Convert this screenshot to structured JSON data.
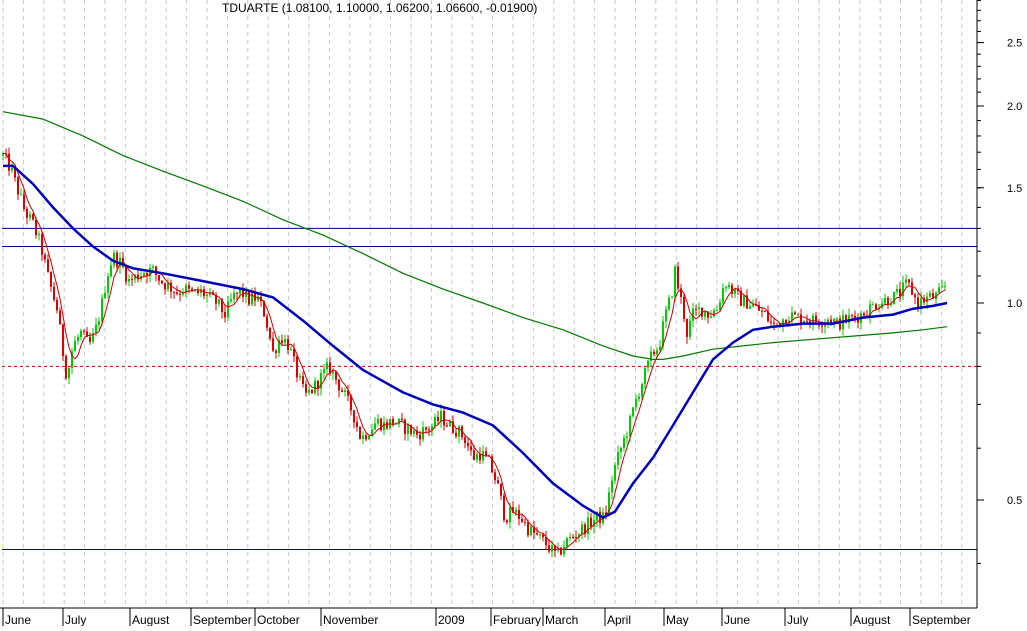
{
  "chart_data": {
    "type": "candlestick",
    "title": "TDUARTE (1.08100, 1.10000, 1.06200, 1.06600, -0.01900)",
    "y_scale": "log",
    "ylim": [
      0.38,
      3.0
    ],
    "y_ticks": [
      {
        "value": 2.5,
        "label": "2.5"
      },
      {
        "value": 2.0,
        "label": "2.0"
      },
      {
        "value": 1.5,
        "label": "1.5"
      },
      {
        "value": 1.0,
        "label": "1.0"
      },
      {
        "value": 0.5,
        "label": "0.5"
      }
    ],
    "x_labels": [
      "June",
      "July",
      "August",
      "September",
      "October",
      "November",
      "2009",
      "February",
      "March",
      "April",
      "May",
      "June",
      "July",
      "August",
      "September"
    ],
    "grid": "vertical dashed",
    "colors": {
      "up": "#00cc00",
      "down": "#dd0000",
      "ma_short": "#cc0000",
      "ma_medium": "#0000bb",
      "ma_long": "#007700",
      "hline": "#000099",
      "dashed_hline": "#cc0000"
    },
    "horizontal_lines": [
      {
        "value": 1.3,
        "style": "solid"
      },
      {
        "value": 1.22,
        "style": "solid"
      },
      {
        "value": 0.42,
        "style": "solid"
      },
      {
        "value": 0.8,
        "style": "dashed"
      }
    ],
    "price_path": [
      [
        0,
        1.68
      ],
      [
        8,
        1.6
      ],
      [
        14,
        1.5
      ],
      [
        22,
        1.38
      ],
      [
        30,
        1.32
      ],
      [
        38,
        1.22
      ],
      [
        46,
        1.08
      ],
      [
        54,
        0.98
      ],
      [
        60,
        0.84
      ],
      [
        64,
        0.77
      ],
      [
        70,
        0.86
      ],
      [
        78,
        0.9
      ],
      [
        86,
        0.86
      ],
      [
        92,
        0.9
      ],
      [
        98,
        0.98
      ],
      [
        104,
        1.1
      ],
      [
        110,
        1.18
      ],
      [
        118,
        1.15
      ],
      [
        126,
        1.08
      ],
      [
        134,
        1.1
      ],
      [
        142,
        1.12
      ],
      [
        150,
        1.12
      ],
      [
        158,
        1.08
      ],
      [
        166,
        1.06
      ],
      [
        174,
        1.04
      ],
      [
        182,
        1.05
      ],
      [
        190,
        1.03
      ],
      [
        198,
        1.04
      ],
      [
        206,
        1.02
      ],
      [
        214,
        1.0
      ],
      [
        222,
        0.96
      ],
      [
        230,
        1.02
      ],
      [
        238,
        1.04
      ],
      [
        246,
        1.01
      ],
      [
        254,
        1.02
      ],
      [
        262,
        0.96
      ],
      [
        270,
        0.84
      ],
      [
        278,
        0.89
      ],
      [
        286,
        0.86
      ],
      [
        294,
        0.78
      ],
      [
        302,
        0.72
      ],
      [
        310,
        0.74
      ],
      [
        318,
        0.77
      ],
      [
        326,
        0.8
      ],
      [
        334,
        0.76
      ],
      [
        342,
        0.72
      ],
      [
        350,
        0.68
      ],
      [
        358,
        0.62
      ],
      [
        366,
        0.64
      ],
      [
        374,
        0.66
      ],
      [
        382,
        0.65
      ],
      [
        390,
        0.66
      ],
      [
        398,
        0.65
      ],
      [
        406,
        0.64
      ],
      [
        414,
        0.63
      ],
      [
        422,
        0.64
      ],
      [
        430,
        0.65
      ],
      [
        438,
        0.67
      ],
      [
        446,
        0.65
      ],
      [
        454,
        0.64
      ],
      [
        462,
        0.62
      ],
      [
        470,
        0.58
      ],
      [
        478,
        0.59
      ],
      [
        486,
        0.57
      ],
      [
        494,
        0.53
      ],
      [
        502,
        0.47
      ],
      [
        510,
        0.48
      ],
      [
        518,
        0.47
      ],
      [
        526,
        0.45
      ],
      [
        534,
        0.44
      ],
      [
        542,
        0.43
      ],
      [
        548,
        0.42
      ],
      [
        554,
        0.41
      ],
      [
        562,
        0.43
      ],
      [
        570,
        0.44
      ],
      [
        578,
        0.45
      ],
      [
        586,
        0.46
      ],
      [
        594,
        0.47
      ],
      [
        602,
        0.47
      ],
      [
        610,
        0.55
      ],
      [
        618,
        0.6
      ],
      [
        626,
        0.65
      ],
      [
        634,
        0.72
      ],
      [
        642,
        0.78
      ],
      [
        650,
        0.84
      ],
      [
        656,
        0.86
      ],
      [
        660,
        0.92
      ],
      [
        664,
        0.98
      ],
      [
        668,
        1.02
      ],
      [
        672,
        1.12
      ],
      [
        676,
        1.04
      ],
      [
        680,
        0.98
      ],
      [
        684,
        0.9
      ],
      [
        690,
        0.96
      ],
      [
        698,
        0.98
      ],
      [
        706,
        0.96
      ],
      [
        714,
        0.98
      ],
      [
        722,
        1.08
      ],
      [
        730,
        1.04
      ],
      [
        738,
        1.01
      ],
      [
        746,
        1.0
      ],
      [
        754,
        0.98
      ],
      [
        762,
        0.96
      ],
      [
        770,
        0.92
      ],
      [
        778,
        0.94
      ],
      [
        786,
        0.96
      ],
      [
        794,
        0.95
      ],
      [
        802,
        0.95
      ],
      [
        810,
        0.94
      ],
      [
        818,
        0.94
      ],
      [
        826,
        0.95
      ],
      [
        834,
        0.93
      ],
      [
        842,
        0.94
      ],
      [
        850,
        0.95
      ],
      [
        858,
        0.96
      ],
      [
        866,
        0.98
      ],
      [
        874,
        1.0
      ],
      [
        882,
        1.01
      ],
      [
        890,
        1.02
      ],
      [
        898,
        1.04
      ],
      [
        904,
        1.07
      ],
      [
        908,
        1.05
      ],
      [
        914,
        1.0
      ],
      [
        920,
        1.01
      ],
      [
        926,
        1.02
      ],
      [
        932,
        1.02
      ],
      [
        938,
        1.04
      ],
      [
        944,
        1.07
      ]
    ],
    "ma_medium_path": [
      [
        0,
        1.62
      ],
      [
        10,
        1.62
      ],
      [
        30,
        1.52
      ],
      [
        50,
        1.4
      ],
      [
        70,
        1.3
      ],
      [
        90,
        1.22
      ],
      [
        110,
        1.16
      ],
      [
        130,
        1.13
      ],
      [
        160,
        1.11
      ],
      [
        200,
        1.08
      ],
      [
        240,
        1.05
      ],
      [
        270,
        1.02
      ],
      [
        300,
        0.94
      ],
      [
        330,
        0.86
      ],
      [
        360,
        0.79
      ],
      [
        400,
        0.73
      ],
      [
        430,
        0.7
      ],
      [
        460,
        0.68
      ],
      [
        490,
        0.65
      ],
      [
        520,
        0.59
      ],
      [
        550,
        0.53
      ],
      [
        580,
        0.49
      ],
      [
        600,
        0.47
      ],
      [
        612,
        0.48
      ],
      [
        630,
        0.53
      ],
      [
        650,
        0.58
      ],
      [
        670,
        0.65
      ],
      [
        690,
        0.73
      ],
      [
        710,
        0.82
      ],
      [
        730,
        0.87
      ],
      [
        750,
        0.91
      ],
      [
        770,
        0.92
      ],
      [
        800,
        0.93
      ],
      [
        830,
        0.93
      ],
      [
        860,
        0.95
      ],
      [
        890,
        0.96
      ],
      [
        910,
        0.98
      ],
      [
        930,
        0.99
      ],
      [
        944,
        1.0
      ]
    ],
    "ma_long_path": [
      [
        0,
        1.96
      ],
      [
        40,
        1.91
      ],
      [
        80,
        1.8
      ],
      [
        120,
        1.68
      ],
      [
        160,
        1.59
      ],
      [
        200,
        1.51
      ],
      [
        240,
        1.43
      ],
      [
        280,
        1.34
      ],
      [
        320,
        1.27
      ],
      [
        360,
        1.19
      ],
      [
        400,
        1.11
      ],
      [
        440,
        1.05
      ],
      [
        480,
        1.0
      ],
      [
        520,
        0.95
      ],
      [
        560,
        0.91
      ],
      [
        600,
        0.86
      ],
      [
        630,
        0.83
      ],
      [
        650,
        0.82
      ],
      [
        660,
        0.82
      ],
      [
        680,
        0.83
      ],
      [
        710,
        0.85
      ],
      [
        740,
        0.86
      ],
      [
        770,
        0.87
      ],
      [
        810,
        0.88
      ],
      [
        850,
        0.89
      ],
      [
        890,
        0.9
      ],
      [
        920,
        0.91
      ],
      [
        944,
        0.92
      ]
    ]
  }
}
